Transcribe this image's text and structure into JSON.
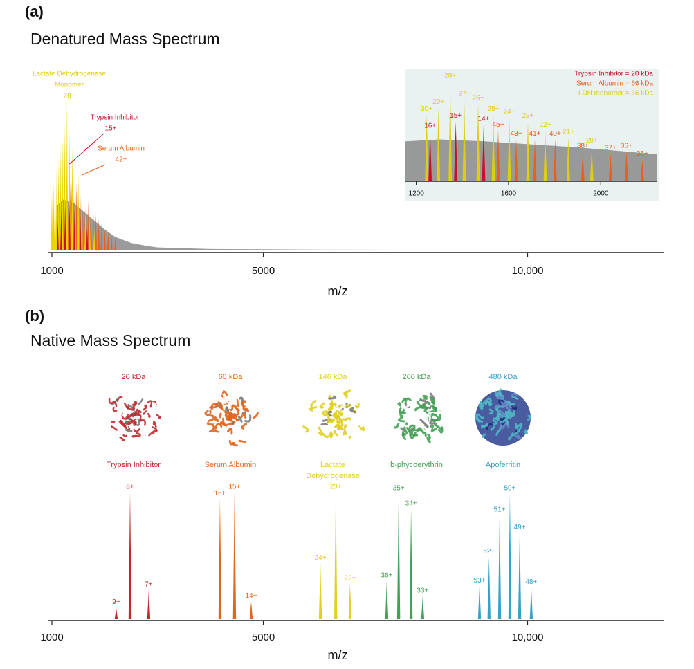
{
  "chart_data": [
    {
      "type": "spectrum",
      "panel_label": "(a)",
      "title": "Denatured Mass Spectrum",
      "x_label": "m/z",
      "xlim": [
        1000,
        12585
      ],
      "ylim": [
        0,
        100
      ],
      "xticks": [
        1000,
        5000,
        {
          "value": 10000,
          "label": "10,000"
        }
      ],
      "series": [
        {
          "style": "area",
          "color": "#8a8a8a",
          "x": [
            1100,
            1200,
            1400,
            1600,
            1800,
            2000,
            2200,
            2500,
            2800,
            3000,
            3500,
            4000,
            5000,
            6000,
            7000,
            8000
          ],
          "values": [
            30,
            34,
            32,
            26,
            20,
            14,
            9,
            5,
            3,
            2,
            1.5,
            1,
            0.8,
            0.6,
            0.5,
            0.4
          ]
        },
        {
          "style": "peaks",
          "color": "#e8601c",
          "x": [
            1179,
            1200,
            1222,
            1245,
            1269,
            1294,
            1320,
            1347,
            1375,
            1404,
            1435,
            1467,
            1500,
            1535,
            1571,
            1610,
            1650,
            1692,
            1737,
            1784,
            1833,
            1886,
            1941,
            2000,
            2063,
            2129,
            2200
          ],
          "values": [
            30,
            33,
            36,
            38,
            40,
            42,
            44,
            45,
            46,
            46,
            45,
            44,
            43,
            42,
            41,
            39,
            36,
            33,
            30,
            27,
            24,
            21,
            18,
            15,
            12,
            10,
            8
          ]
        },
        {
          "style": "peaks",
          "color": "#e8d400",
          "x": [
            1000,
            1029,
            1059,
            1091,
            1125,
            1161,
            1200,
            1241,
            1286,
            1333,
            1385,
            1440,
            1500,
            1565,
            1636,
            1714,
            1800
          ],
          "values": [
            40,
            45,
            50,
            55,
            60,
            70,
            75,
            85,
            100,
            80,
            70,
            60,
            50,
            40,
            30,
            22,
            15
          ]
        },
        {
          "style": "peaks",
          "color": "#c8102e",
          "x": [
            1111,
            1176,
            1250,
            1333,
            1429,
            1538,
            1667
          ],
          "values": [
            20,
            26,
            30,
            32,
            28,
            22,
            15
          ]
        }
      ],
      "annotations": [
        {
          "text": [
            "Lactate Dehydrogenase",
            "Monomer"
          ],
          "charge": "28+",
          "x": 1286,
          "color": "#e0cc10"
        },
        {
          "text": [
            "Trypsin Inhibitor"
          ],
          "charge": "15+",
          "x": 1333,
          "color": "#c8102e"
        },
        {
          "text": [
            "Serum Albumin"
          ],
          "charge": "42+",
          "x": 1571,
          "color": "#e8601c"
        }
      ]
    },
    {
      "type": "spectrum",
      "xlim": [
        1150,
        2245
      ],
      "ylim": [
        0,
        100
      ],
      "xticks": [
        1200,
        1600,
        2000
      ],
      "legend": [
        {
          "text": "Trypsin Inhibitor = 20 kDa",
          "color": "#c8102e"
        },
        {
          "text": "Serum Albumin = 66 kDa",
          "color": "#e8601c"
        },
        {
          "text": "LDH monomer = 36 kDa",
          "color": "#e0cc10"
        }
      ],
      "series": [
        {
          "style": "area",
          "color": "#8a8a8a",
          "x": [
            1150,
            1300,
            1500,
            1700,
            1900,
            2100,
            2245
          ],
          "values": [
            40,
            42,
            40,
            37,
            34,
            30,
            27
          ]
        },
        {
          "style": "peaks",
          "color": "#e8601c",
          "x": [
            1555,
            1633,
            1714,
            1802,
            1922,
            2042,
            2111,
            2180
          ],
          "values": [
            51,
            42,
            42,
            42,
            30,
            28,
            30,
            22
          ],
          "peak_labels": [
            "45+",
            "43+",
            "41+",
            "40+",
            "38+",
            "37+",
            "36+",
            "35+"
          ]
        },
        {
          "style": "peaks",
          "color": "#e0cc10",
          "x": [
            1245,
            1296,
            1347,
            1408,
            1468,
            1534,
            1603,
            1684,
            1759,
            1859,
            1961
          ],
          "values": [
            67,
            74,
            100,
            82,
            78,
            67,
            64,
            60,
            51,
            44,
            35
          ],
          "peak_labels": [
            "30+",
            "29+",
            "28+",
            "27+",
            "26+",
            "25+",
            "24+",
            "23+",
            "22+",
            "21+",
            "20+"
          ]
        },
        {
          "style": "peaks",
          "color": "#c8102e",
          "x": [
            1260,
            1371,
            1492
          ],
          "values": [
            50,
            60,
            57
          ],
          "peak_labels": [
            "16+",
            "15+",
            "14+"
          ]
        }
      ]
    },
    {
      "type": "spectrum",
      "panel_label": "(b)",
      "title": "Native Mass Spectrum",
      "x_label": "m/z",
      "xlim": [
        1000,
        12585
      ],
      "ylim": [
        0,
        100
      ],
      "xticks": [
        1000,
        5000,
        {
          "value": 10000,
          "label": "10,000"
        }
      ],
      "series": [
        {
          "style": "peaks",
          "name_lines": [
            "Trypsin Inhibitor"
          ],
          "mass": "20 kDa",
          "color": "#c0282d",
          "x": [
            2217,
            2479,
            2832
          ],
          "values": [
            9,
            100,
            23
          ],
          "peak_labels": [
            "9+",
            "8+",
            "7+"
          ]
        },
        {
          "style": "peaks",
          "name_lines": [
            "Serum Albumin"
          ],
          "mass": "66 kDa",
          "color": "#e0661e",
          "x": [
            4180,
            4455,
            4770
          ],
          "values": [
            95,
            100,
            14
          ],
          "peak_labels": [
            "16+",
            "15+",
            "14+"
          ]
        },
        {
          "style": "peaks",
          "name_lines": [
            "Lactate",
            "Dehydrogenase"
          ],
          "mass": "146 kDa",
          "color": "#e0d020",
          "x": [
            6080,
            6370,
            6640
          ],
          "values": [
            44,
            100,
            28
          ],
          "peak_labels": [
            "24+",
            "23+",
            "22+"
          ]
        },
        {
          "style": "peaks",
          "name_lines": [
            "b-phycoerythrin"
          ],
          "mass": "260 kDa",
          "color": "#45a055",
          "x": [
            7335,
            7560,
            7795,
            8015
          ],
          "values": [
            30,
            99,
            87,
            18
          ],
          "peak_labels": [
            "36+",
            "35+",
            "34+",
            "33+"
          ]
        },
        {
          "style": "peaks",
          "name_lines": [
            "Apoferritin"
          ],
          "mass": "480 kDa",
          "color": "#35a2c8",
          "x": [
            9090,
            9270,
            9470,
            9665,
            9850,
            10070
          ],
          "values": [
            26,
            49,
            82,
            99,
            68,
            25
          ],
          "peak_labels": [
            "53+",
            "52+",
            "51+",
            "50+",
            "49+",
            "48+"
          ]
        }
      ]
    }
  ]
}
